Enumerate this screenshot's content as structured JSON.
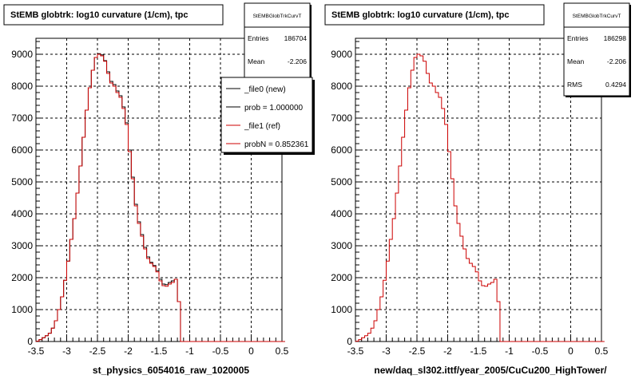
{
  "footer_text": "",
  "chart_data": [
    {
      "type": "histogram",
      "title": "StEMB globtrk: log10 curvature (1/cm), tpc",
      "xlabel": "st_physics_6054016_raw_1020005",
      "xlim": [
        -3.5,
        0.5
      ],
      "ylim": [
        0,
        9500
      ],
      "x_ticks": [
        "-3.5",
        "-3",
        "-2.5",
        "-2",
        "-1.5",
        "-1",
        "-0.5",
        "0",
        "0.5"
      ],
      "y_ticks": [
        "0",
        "1000",
        "2000",
        "3000",
        "4000",
        "5000",
        "6000",
        "7000",
        "8000",
        "9000"
      ],
      "grid": true,
      "bin_start": -3.5,
      "bin_width": 0.05,
      "stats": {
        "name": "StEMBGlobTrkCurvT",
        "rows": [
          {
            "label": "Entries",
            "value": "186704"
          },
          {
            "label": "Mean",
            "value": "-2.206"
          }
        ]
      },
      "legend": {
        "placement": "top-right",
        "entries": [
          {
            "label": "_file0 (new)",
            "color": "#000000"
          },
          {
            "label": "prob = 1.000000",
            "color": "#000000"
          },
          {
            "label": "_file1 (ref)",
            "color": "#cc0000"
          },
          {
            "label": "probN = 0.852361",
            "color": "#cc0000"
          }
        ]
      },
      "series": [
        {
          "color": "#000000",
          "values": [
            10,
            60,
            120,
            180,
            260,
            420,
            650,
            1000,
            1400,
            1920,
            2520,
            3200,
            3850,
            4650,
            5500,
            6400,
            7250,
            7950,
            8500,
            8900,
            9020,
            8980,
            8800,
            8450,
            8150,
            8050,
            7850,
            7700,
            7350,
            6850,
            6000,
            5150,
            4300,
            3750,
            3350,
            2950,
            2650,
            2480,
            2380,
            2220,
            1950,
            1800,
            1780,
            1850,
            1900,
            1950,
            1250,
            0,
            0,
            0,
            0,
            0,
            0,
            0,
            0,
            0,
            0,
            0,
            0,
            0,
            0,
            0,
            0,
            0,
            0,
            0,
            0,
            0,
            0,
            0,
            0,
            0,
            0,
            0,
            0,
            0,
            0,
            0,
            0,
            0,
            0
          ]
        },
        {
          "color": "#cc0000",
          "values": [
            10,
            60,
            120,
            180,
            260,
            420,
            650,
            1000,
            1400,
            1920,
            2520,
            3200,
            3850,
            4650,
            5500,
            6400,
            7250,
            7950,
            8500,
            8900,
            9000,
            8950,
            8780,
            8400,
            8100,
            8000,
            7800,
            7650,
            7300,
            6800,
            5950,
            5100,
            4250,
            3700,
            3300,
            2900,
            2600,
            2450,
            2350,
            2180,
            1900,
            1750,
            1730,
            1800,
            1850,
            1950,
            1250,
            0,
            0,
            0,
            0,
            0,
            0,
            0,
            0,
            0,
            0,
            0,
            0,
            0,
            0,
            0,
            0,
            0,
            0,
            0,
            0,
            0,
            0,
            0,
            0,
            0,
            0,
            0,
            0,
            0,
            0,
            0,
            0,
            0,
            0
          ]
        }
      ]
    },
    {
      "type": "histogram",
      "title": "StEMB globtrk: log10 curvature (1/cm), tpc",
      "xlabel": "new/daq_sl302.ittf/year_2005/CuCu200_HighTower/",
      "xlim": [
        -3.5,
        0.5
      ],
      "ylim": [
        0,
        9500
      ],
      "x_ticks": [
        "-3.5",
        "-3",
        "-2.5",
        "-2",
        "-1.5",
        "-1",
        "-0.5",
        "0",
        "0.5"
      ],
      "y_ticks": [
        "0",
        "1000",
        "2000",
        "3000",
        "4000",
        "5000",
        "6000",
        "7000",
        "8000",
        "9000"
      ],
      "grid": true,
      "bin_start": -3.5,
      "bin_width": 0.05,
      "stats": {
        "name": "StEMBGlobTrkCurvT",
        "rows": [
          {
            "label": "Entries",
            "value": "186298"
          },
          {
            "label": "Mean",
            "value": "-2.206"
          },
          {
            "label": "RMS",
            "value": "0.4294"
          }
        ]
      },
      "series": [
        {
          "color": "#cc0000",
          "values": [
            10,
            60,
            120,
            180,
            260,
            420,
            650,
            1000,
            1400,
            1920,
            2520,
            3200,
            3850,
            4650,
            5500,
            6400,
            7250,
            7950,
            8500,
            8900,
            9000,
            8950,
            8780,
            8400,
            8100,
            8000,
            7800,
            7650,
            7300,
            6800,
            5950,
            5100,
            4250,
            3700,
            3300,
            2900,
            2600,
            2450,
            2350,
            2180,
            1900,
            1750,
            1730,
            1800,
            1850,
            1950,
            1250,
            0,
            0,
            0,
            0,
            0,
            0,
            0,
            0,
            0,
            0,
            0,
            0,
            0,
            0,
            0,
            0,
            0,
            0,
            0,
            0,
            0,
            0,
            0,
            0,
            0,
            0,
            0,
            0,
            0,
            0,
            0,
            0,
            0,
            0
          ]
        }
      ]
    }
  ]
}
